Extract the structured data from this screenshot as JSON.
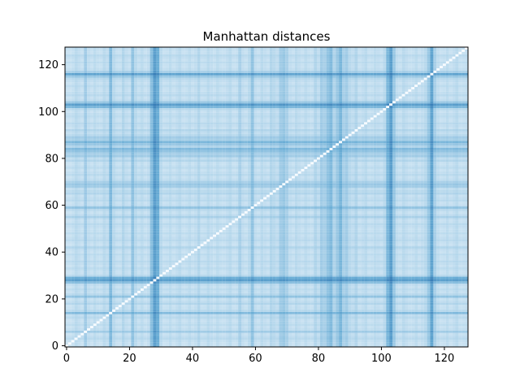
{
  "chart_data": {
    "type": "heatmap",
    "title": "Manhattan distances",
    "xlabel": "",
    "ylabel": "",
    "xlim": [
      0,
      128
    ],
    "ylim": [
      0,
      128
    ],
    "n": 128,
    "x_ticks": [
      0,
      20,
      40,
      60,
      80,
      100,
      120
    ],
    "y_ticks": [
      0,
      20,
      40,
      60,
      80,
      100,
      120
    ],
    "x_tick_labels": [
      "0",
      "20",
      "40",
      "60",
      "80",
      "100",
      "120"
    ],
    "y_tick_labels": [
      "0",
      "20",
      "40",
      "60",
      "80",
      "100",
      "120"
    ],
    "colormap": "Blues",
    "grid": false,
    "colors": {
      "low": "#f7fbff",
      "mid": "#6baed6",
      "high": "#08519c"
    },
    "point_distance": [
      0.1,
      0.08,
      0.12,
      0.2,
      0.15,
      0.1,
      0.35,
      0.15,
      0.1,
      0.18,
      0.12,
      0.1,
      0.2,
      0.15,
      0.55,
      0.2,
      0.12,
      0.1,
      0.25,
      0.15,
      0.1,
      0.45,
      0.2,
      0.12,
      0.18,
      0.1,
      0.15,
      0.5,
      0.85,
      0.7,
      0.2,
      0.1,
      0.12,
      0.18,
      0.1,
      0.15,
      0.2,
      0.1,
      0.12,
      0.18,
      0.1,
      0.15,
      0.25,
      0.1,
      0.12,
      0.2,
      0.15,
      0.1,
      0.18,
      0.12,
      0.1,
      0.15,
      0.2,
      0.1,
      0.12,
      0.3,
      0.15,
      0.1,
      0.2,
      0.45,
      0.15,
      0.1,
      0.2,
      0.15,
      0.1,
      0.25,
      0.2,
      0.15,
      0.35,
      0.4,
      0.3,
      0.15,
      0.1,
      0.2,
      0.15,
      0.1,
      0.18,
      0.12,
      0.1,
      0.25,
      0.15,
      0.35,
      0.3,
      0.45,
      0.55,
      0.25,
      0.4,
      0.6,
      0.3,
      0.35,
      0.2,
      0.15,
      0.25,
      0.1,
      0.15,
      0.2,
      0.1,
      0.12,
      0.18,
      0.15,
      0.1,
      0.2,
      0.6,
      0.85,
      0.4,
      0.15,
      0.1,
      0.2,
      0.15,
      0.1,
      0.12,
      0.18,
      0.1,
      0.15,
      0.2,
      0.4,
      0.8,
      0.3,
      0.15,
      0.1,
      0.12,
      0.18,
      0.1,
      0.15,
      0.2,
      0.1,
      0.12,
      0.15
    ]
  }
}
